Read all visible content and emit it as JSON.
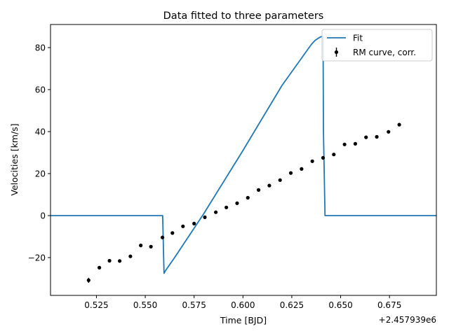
{
  "chart_data": {
    "type": "line",
    "title": "Data fitted to three parameters",
    "xlabel": "Time [BJD]",
    "ylabel": "Velocities [km/s]",
    "x_offset_label": "+2.457939e6",
    "xlim": [
      0.5015,
      0.699
    ],
    "ylim": [
      -38,
      91
    ],
    "x_ticks": [
      0.525,
      0.55,
      0.575,
      0.6,
      0.625,
      0.65,
      0.675
    ],
    "x_tick_labels": [
      "0.525",
      "0.550",
      "0.575",
      "0.600",
      "0.625",
      "0.650",
      "0.675"
    ],
    "y_ticks": [
      -20,
      0,
      20,
      40,
      60,
      80
    ],
    "y_tick_labels": [
      "−20",
      "0",
      "20",
      "40",
      "60",
      "80"
    ],
    "grid": false,
    "legend_position": "top-right",
    "series": [
      {
        "name": "Fit",
        "kind": "line",
        "color": "#1f77b4",
        "x": [
          0.5015,
          0.5589,
          0.5596,
          0.5605,
          0.565,
          0.58,
          0.6,
          0.62,
          0.635,
          0.637,
          0.6395,
          0.641,
          0.6412,
          0.642,
          0.699
        ],
        "y": [
          0,
          0,
          -27.5,
          -26,
          -20,
          1,
          31,
          62,
          81.5,
          83.5,
          85,
          85.5,
          40,
          0,
          0
        ]
      },
      {
        "name": "RM curve, corr.",
        "kind": "errorbar",
        "color": "#000000",
        "x": [
          0.521,
          0.5265,
          0.5317,
          0.5369,
          0.5424,
          0.5477,
          0.5529,
          0.5588,
          0.5639,
          0.5693,
          0.575,
          0.5805,
          0.5861,
          0.5915,
          0.597,
          0.6025,
          0.608,
          0.6135,
          0.619,
          0.6245,
          0.63,
          0.6355,
          0.641,
          0.6465,
          0.652,
          0.6575,
          0.663,
          0.6685,
          0.6745,
          0.68
        ],
        "y": [
          -30.8,
          -24.8,
          -21.5,
          -21.6,
          -19.4,
          -14.2,
          -14.8,
          -10.4,
          -8.3,
          -5.1,
          -3.8,
          -0.8,
          1.6,
          3.9,
          5.9,
          8.5,
          12.2,
          14.3,
          16.9,
          20.3,
          22.2,
          25.9,
          27.5,
          29.1,
          33.9,
          34.2,
          37.3,
          37.5,
          39.9,
          43.3
        ],
        "yerr": [
          1.2,
          0.8,
          0.8,
          0.8,
          0.8,
          0.6,
          0.6,
          0.8,
          0.6,
          0.6,
          0.6,
          0.6,
          0.6,
          0.6,
          0.8,
          0.6,
          0.6,
          0.8,
          0.6,
          0.6,
          0.6,
          0.6,
          0.8,
          0.6,
          0.6,
          0.8,
          0.6,
          0.6,
          0.6,
          0.8
        ]
      }
    ]
  }
}
